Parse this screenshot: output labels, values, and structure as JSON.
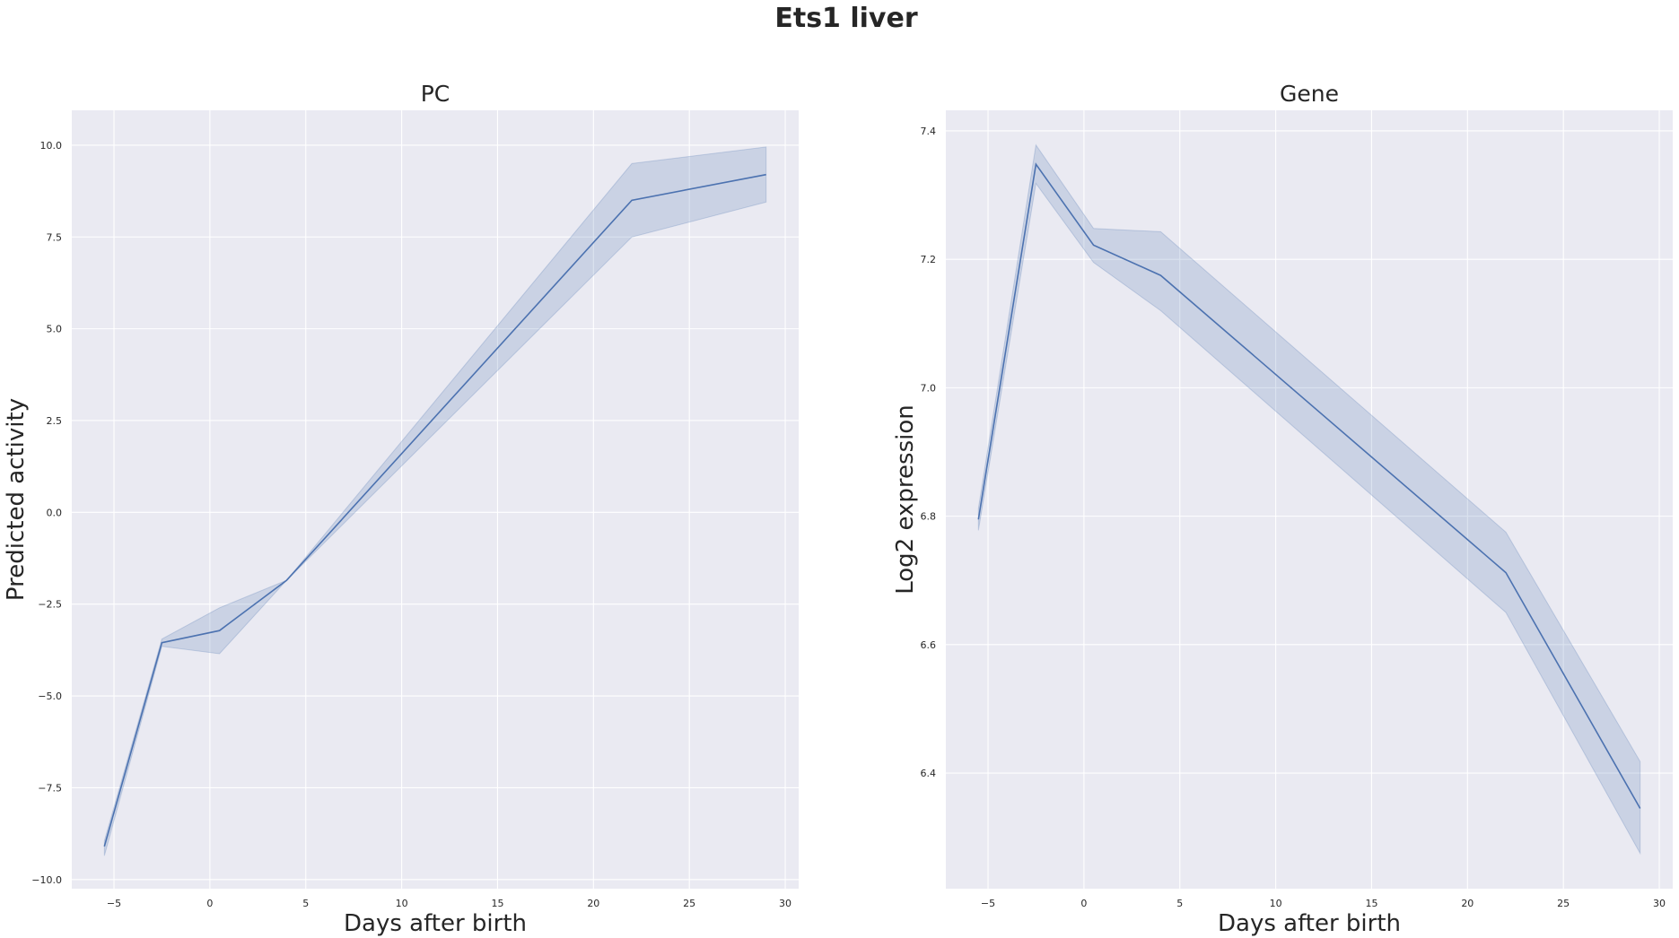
{
  "figure": {
    "title": "Ets1 liver"
  },
  "colors": {
    "panel_bg": "#eaeaf2",
    "grid": "#ffffff",
    "line": "#4c72b0",
    "band": "#4c72b0",
    "text": "#262626"
  },
  "chart_data": [
    {
      "type": "line",
      "title": "PC",
      "xlabel": "Days after birth",
      "ylabel": "Predicted activity",
      "xlim": [
        -7.2,
        30.7
      ],
      "ylim": [
        -10.25,
        10.95
      ],
      "xticks": [
        -5,
        0,
        5,
        10,
        15,
        20,
        25,
        30
      ],
      "xtick_labels": [
        "−5",
        "0",
        "5",
        "10",
        "15",
        "20",
        "25",
        "30"
      ],
      "yticks": [
        -10,
        -7.5,
        -5,
        -2.5,
        0,
        2.5,
        5,
        7.5,
        10
      ],
      "ytick_labels": [
        "−10.0",
        "−7.5",
        "−5.0",
        "−2.5",
        "0.0",
        "2.5",
        "5.0",
        "7.5",
        "10.0"
      ],
      "grid": true,
      "series": [
        {
          "x": [
            -5.5,
            -2.5,
            0.5,
            4,
            22,
            29
          ],
          "y": [
            -9.1,
            -3.55,
            -3.22,
            -1.85,
            8.5,
            9.2
          ],
          "ci_low": [
            -9.35,
            -3.65,
            -3.85,
            -1.85,
            7.5,
            8.45
          ],
          "ci_high": [
            -8.95,
            -3.45,
            -2.6,
            -1.85,
            9.5,
            9.95
          ]
        }
      ]
    },
    {
      "type": "line",
      "title": "Gene",
      "xlabel": "Days after birth",
      "ylabel": "Log2 expression",
      "xlim": [
        -7.2,
        30.7
      ],
      "ylim": [
        6.22,
        7.432
      ],
      "xticks": [
        -5,
        0,
        5,
        10,
        15,
        20,
        25,
        30
      ],
      "xtick_labels": [
        "−5",
        "0",
        "5",
        "10",
        "15",
        "20",
        "25",
        "30"
      ],
      "yticks": [
        6.4,
        6.6,
        6.8,
        7.0,
        7.2,
        7.4
      ],
      "ytick_labels": [
        "6.4",
        "6.6",
        "6.8",
        "7.0",
        "7.2",
        "7.4"
      ],
      "grid": true,
      "series": [
        {
          "x": [
            -5.5,
            -2.5,
            0.5,
            4,
            22,
            29
          ],
          "y": [
            6.795,
            7.348,
            7.222,
            7.175,
            6.712,
            6.345
          ],
          "ci_low": [
            6.778,
            7.318,
            7.195,
            7.12,
            6.65,
            6.275
          ],
          "ci_high": [
            6.812,
            7.378,
            7.248,
            7.243,
            6.775,
            6.418
          ]
        }
      ]
    }
  ]
}
